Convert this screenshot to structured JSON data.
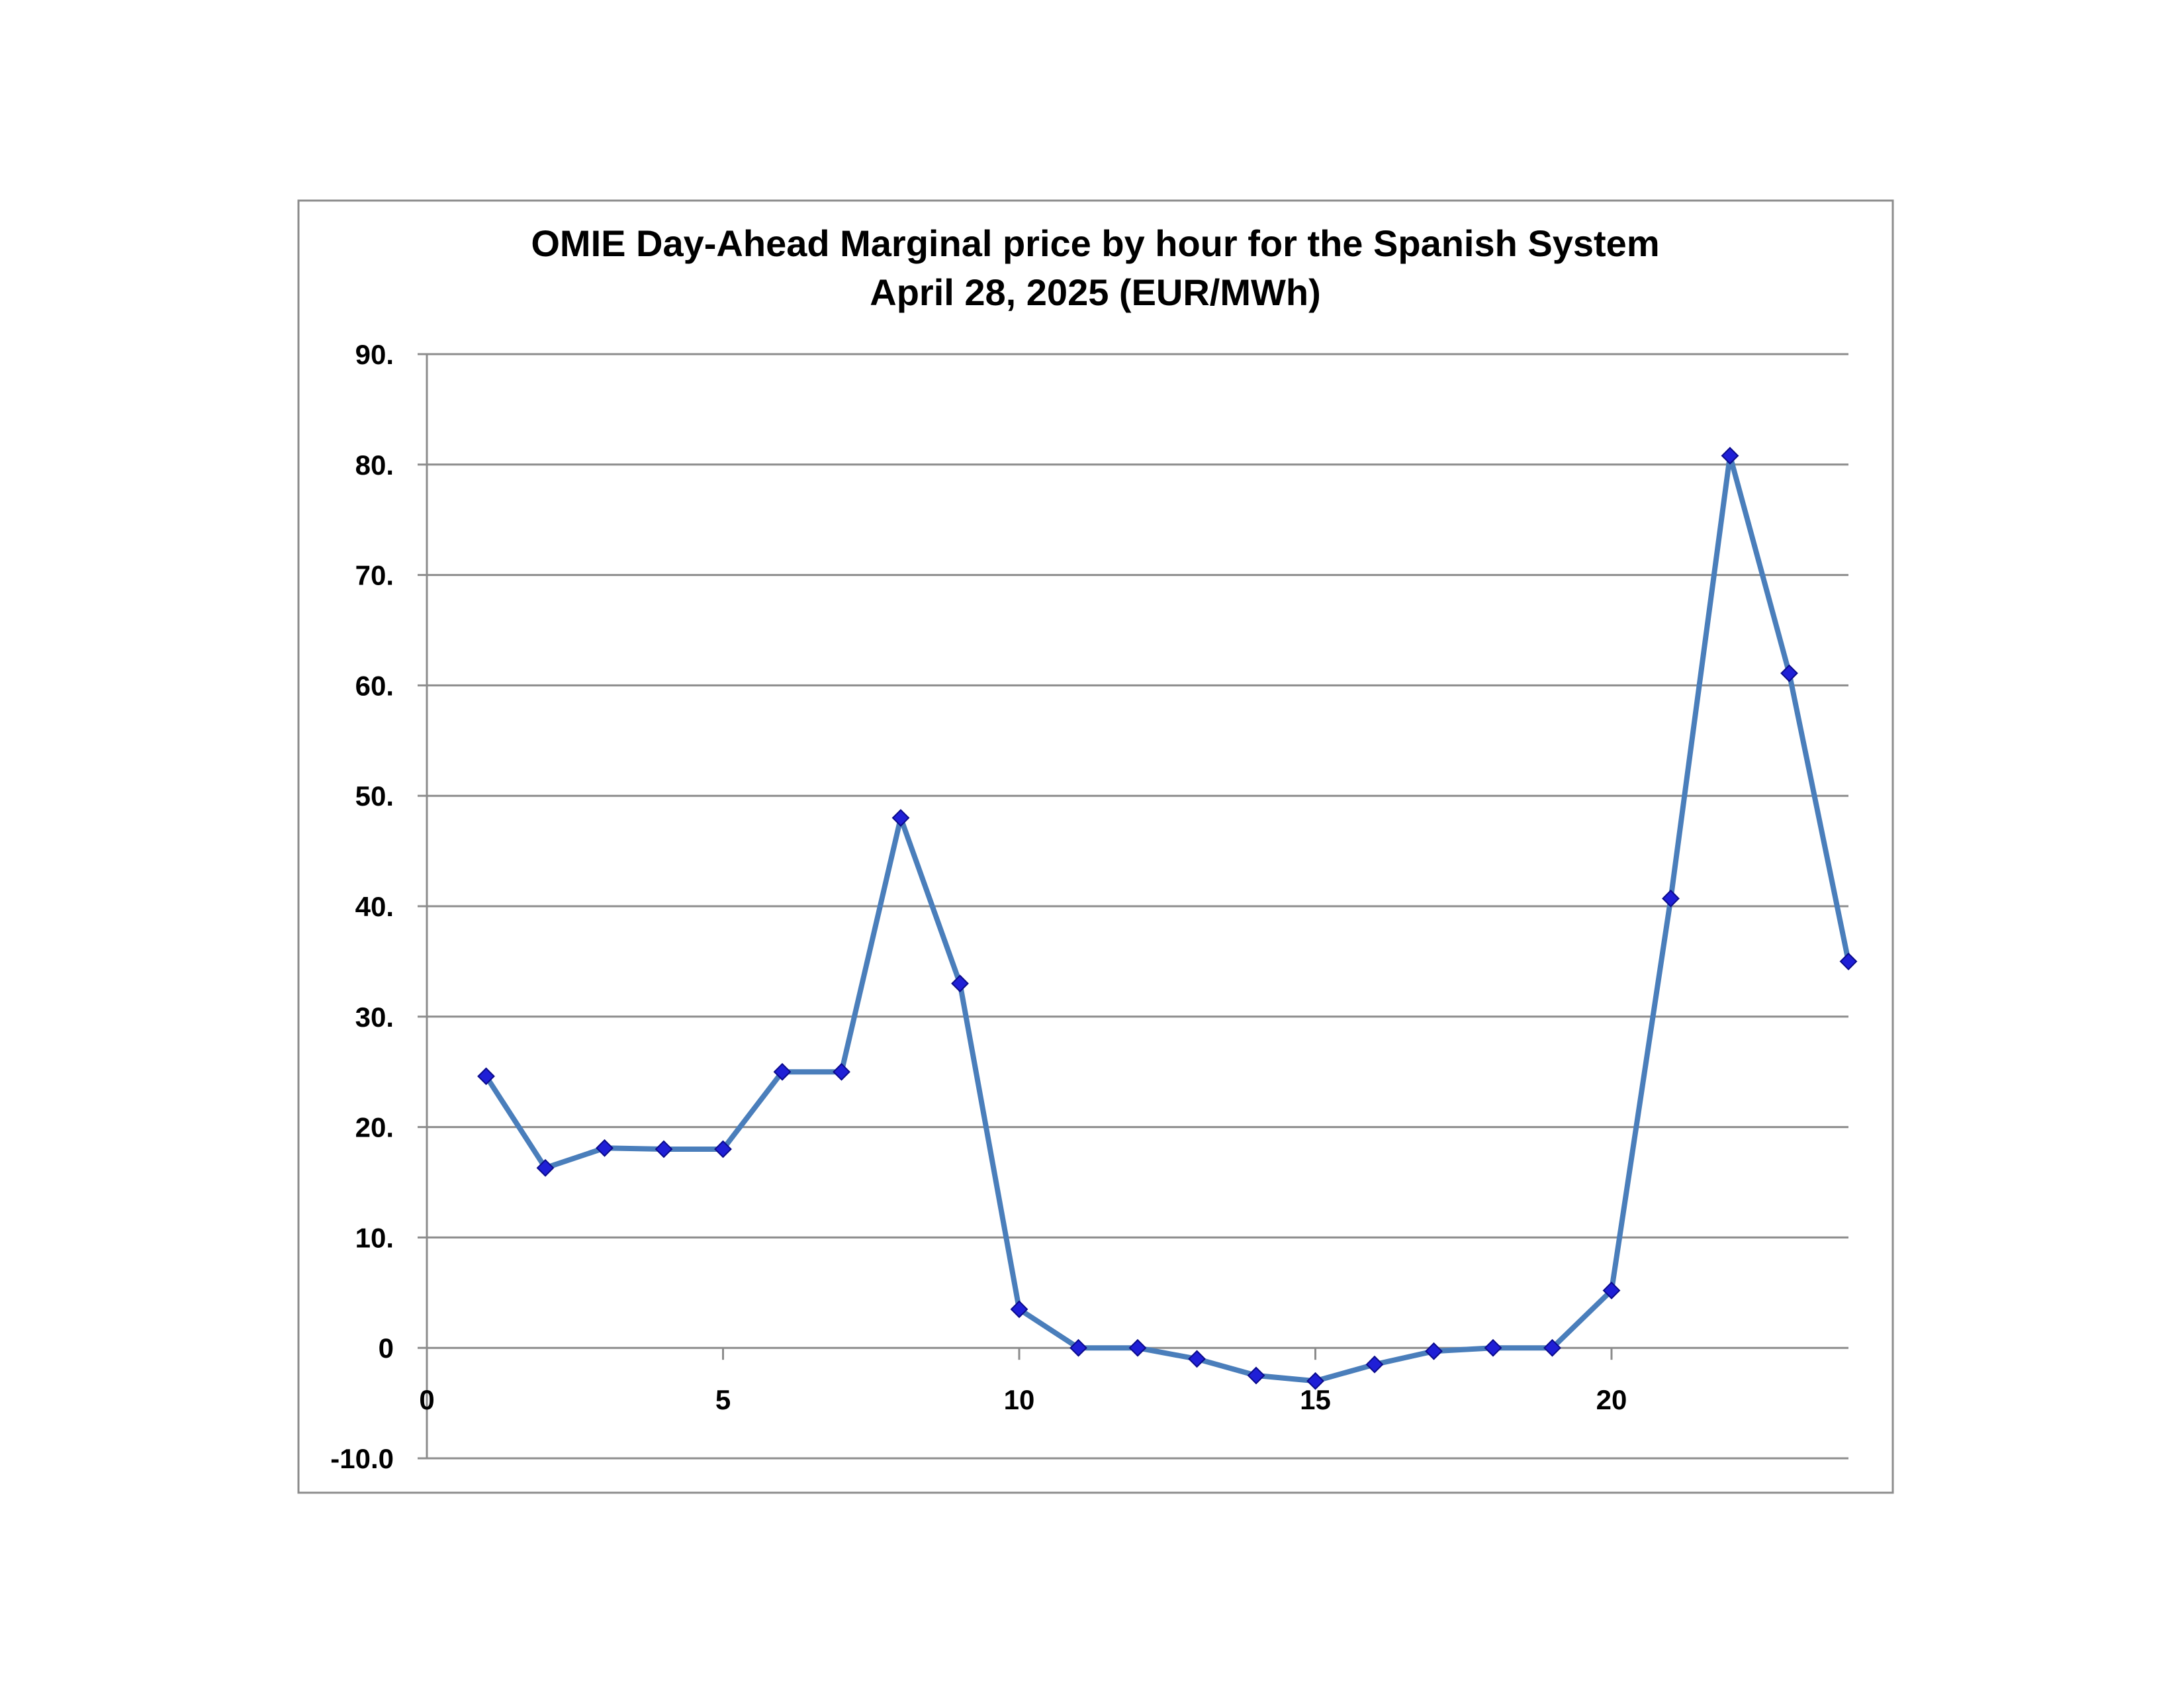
{
  "chart_data": {
    "type": "line",
    "title": "OMIE Day-Ahead Marginal price by hour for the Spanish System",
    "subtitle": "April 28, 2025  (EUR/MWh)",
    "xlabel": "",
    "ylabel": "",
    "xlim": [
      0,
      24
    ],
    "ylim": [
      -10,
      90
    ],
    "x_ticks": [
      0,
      5,
      10,
      15,
      20
    ],
    "x_tick_labels": [
      "0",
      "5",
      "10",
      "15",
      "20"
    ],
    "y_ticks": [
      90,
      80,
      70,
      60,
      50,
      40,
      30,
      20,
      10,
      0,
      -10
    ],
    "y_tick_labels": [
      "90.",
      "80.",
      "70.",
      "60.",
      "50.",
      "40.",
      "30.",
      "20.",
      "10.",
      "0",
      "-10.0"
    ],
    "grid": true,
    "legend": "none",
    "colors": {
      "line": "#4a7ebb",
      "marker": "#1f1fd6",
      "marker_edge": "#0a0a8a",
      "grid": "#8c8c8c",
      "frame": "#8c8c8c"
    },
    "series": [
      {
        "x": [
          1,
          2,
          3,
          4,
          5,
          6,
          7,
          8,
          9,
          10,
          11,
          12,
          13,
          14,
          15,
          16,
          17,
          18,
          19,
          20,
          21,
          22,
          23,
          24
        ],
        "y": [
          24.6,
          16.3,
          18.1,
          18.0,
          18.0,
          25.0,
          25.0,
          48.0,
          33.0,
          3.5,
          0.0,
          0.0,
          -1.0,
          -2.5,
          -3.0,
          -1.5,
          -0.3,
          0.0,
          0.0,
          5.2,
          40.7,
          80.8,
          61.1,
          35.0
        ]
      }
    ]
  }
}
